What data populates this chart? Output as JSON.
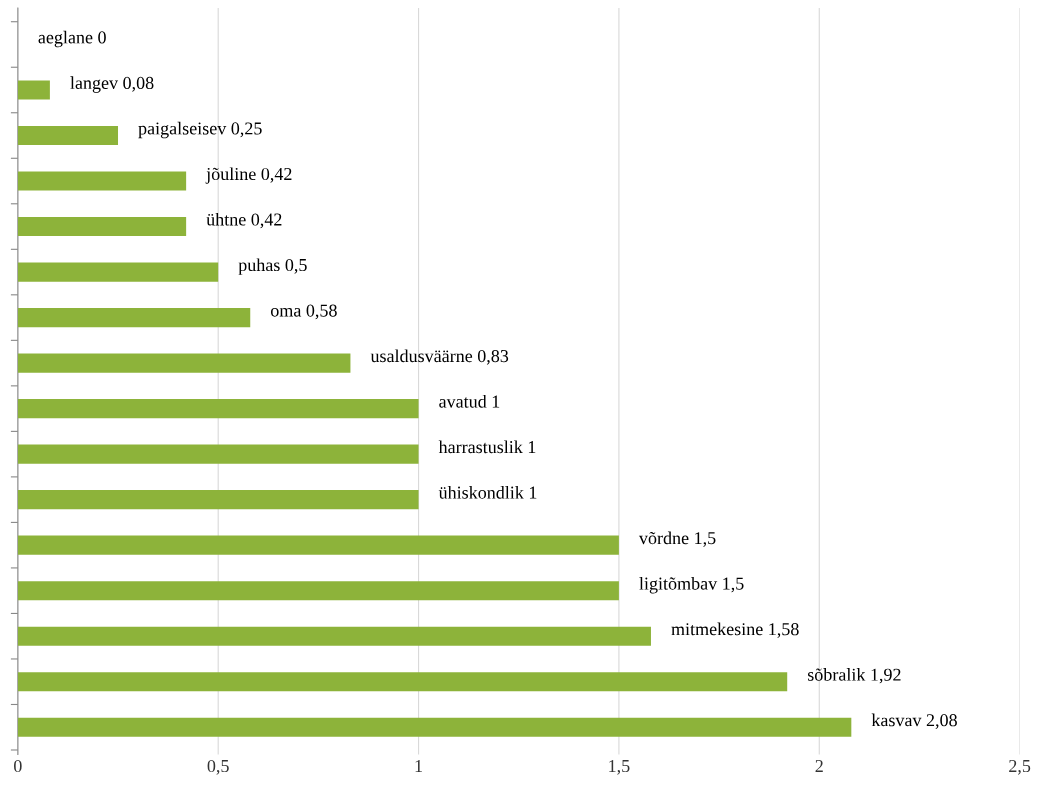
{
  "chart_data": {
    "type": "bar",
    "orientation": "horizontal",
    "categories": [
      "aeglane",
      "langev",
      "paigalseisev",
      "jõuline",
      "ühtne",
      "puhas",
      "oma",
      "usaldusväärne",
      "avatud",
      "harrastuslik",
      "ühiskondlik",
      "võrdne",
      "ligitõmbav",
      "mitmekesine",
      "sõbralik",
      "kasvav"
    ],
    "values": [
      0,
      0.08,
      0.25,
      0.42,
      0.42,
      0.5,
      0.58,
      0.83,
      1,
      1,
      1,
      1.5,
      1.5,
      1.58,
      1.92,
      2.08
    ],
    "value_labels": [
      "0",
      "0,08",
      "0,25",
      "0,42",
      "0,42",
      "0,5",
      "0,58",
      "0,83",
      "1",
      "1",
      "1",
      "1,5",
      "1,5",
      "1,58",
      "1,92",
      "2,08"
    ],
    "color": "#8db33a",
    "xlim": [
      0,
      2.5
    ],
    "xticks": [
      0,
      {
        "value": 0.5,
        "label": "0,5"
      },
      1,
      {
        "value": 1.5,
        "label": "1,5"
      },
      2,
      {
        "value": 2.5,
        "label": "2,5"
      }
    ],
    "grid": "x",
    "tick_labels": "x"
  }
}
